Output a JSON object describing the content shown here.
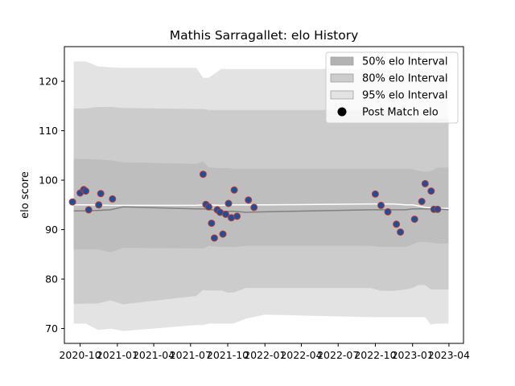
{
  "chart_data": {
    "type": "area",
    "title": "Mathis Sarragallet: elo History",
    "xlabel": "",
    "ylabel": "elo score",
    "grid": false,
    "legend_position": "upper-right",
    "xlim": [
      "2020-08-23",
      "2023-05-07"
    ],
    "ylim": [
      67,
      127
    ],
    "x_ticks": [
      "2020-10",
      "2021-01",
      "2021-04",
      "2021-07",
      "2021-10",
      "2022-01",
      "2022-04",
      "2022-07",
      "2022-10",
      "2023-01",
      "2023-04"
    ],
    "y_ticks": [
      70,
      80,
      90,
      100,
      110,
      120
    ],
    "legend": [
      {
        "label": "50% elo Interval",
        "kind": "band",
        "color": "#b3b3b3"
      },
      {
        "label": "80% elo Interval",
        "kind": "band",
        "color": "#cccccc"
      },
      {
        "label": "95% elo Interval",
        "kind": "band",
        "color": "#e3e3e3"
      },
      {
        "label": "Post Match elo",
        "kind": "marker",
        "color": "#000000"
      }
    ],
    "colors": {
      "band_50": "#b3b3b3",
      "band_80": "#cccccc",
      "band_95": "#e3e3e3",
      "mean_line": "#808080",
      "median_line": "#ffffff",
      "point_fill": "#1f4e9c",
      "point_edge": "#c0392b"
    },
    "bands": {
      "dates": [
        "2020-09-15",
        "2020-10-15",
        "2020-11-15",
        "2020-12-15",
        "2021-01-15",
        "2021-07-15",
        "2021-08-01",
        "2021-08-15",
        "2021-09-15",
        "2021-10-01",
        "2021-10-15",
        "2021-11-15",
        "2022-01-01",
        "2022-09-20",
        "2022-10-15",
        "2022-11-15",
        "2022-12-15",
        "2023-01-01",
        "2023-01-15",
        "2023-02-01",
        "2023-02-15",
        "2023-03-01",
        "2023-03-31"
      ],
      "p95_upper": [
        124,
        124,
        123,
        122.8,
        122.7,
        122.7,
        120.7,
        120.7,
        122.5,
        122.5,
        122.5,
        122.5,
        122.5,
        122.5,
        122.5,
        122.5,
        122.5,
        122.5,
        122.5,
        122.5,
        122.5,
        122.5,
        122.5
      ],
      "p80_upper": [
        114.5,
        114.5,
        114.8,
        114.8,
        114.6,
        114.4,
        114.4,
        114.2,
        114.2,
        114.2,
        114.2,
        114.2,
        114.2,
        114.2,
        114.2,
        114.2,
        113.8,
        113.0,
        112.4,
        112.3,
        112.3,
        112.5,
        112.4
      ],
      "p50_upper": [
        104.3,
        104.3,
        104.2,
        104.0,
        103.6,
        103.3,
        103.8,
        102.6,
        102.4,
        102.5,
        102.3,
        102.3,
        102.3,
        102.3,
        102.3,
        102.3,
        102.3,
        102.3,
        101.9,
        101.7,
        101.8,
        102.5,
        102.6
      ],
      "mean": [
        93.8,
        93.8,
        93.9,
        94.0,
        94.6,
        94.2,
        94.2,
        94.1,
        93.7,
        93.7,
        93.7,
        93.5,
        93.6,
        94.0,
        94.0,
        94.0,
        94.0,
        94.2,
        94.2,
        94.2,
        94.2,
        94.2,
        94.0
      ],
      "median": [
        95.0,
        95.0,
        95.0,
        94.9,
        94.9,
        94.9,
        95.0,
        95.0,
        94.9,
        95.0,
        95.0,
        95.0,
        95.0,
        95.2,
        95.2,
        95.2,
        95.0,
        95.0,
        94.8,
        94.5,
        94.4,
        94.3,
        94.3
      ],
      "p50_lower": [
        86.0,
        86.0,
        86.0,
        85.4,
        86.3,
        86.2,
        86.2,
        86.7,
        86.5,
        86.5,
        86.5,
        86.7,
        86.7,
        86.7,
        86.5,
        86.5,
        86.5,
        87.0,
        87.5,
        87.5,
        87.4,
        87.2,
        87.2
      ],
      "p80_lower": [
        75.0,
        75.0,
        75.1,
        75.7,
        74.9,
        76.6,
        77.8,
        77.7,
        77.7,
        77.3,
        77.3,
        78.2,
        78.2,
        78.2,
        77.6,
        77.6,
        77.9,
        78.2,
        78.8,
        78.8,
        77.9,
        77.9,
        77.9
      ],
      "p95_lower": [
        71.0,
        71.0,
        69.7,
        70.0,
        69.5,
        70.7,
        70.7,
        71.0,
        71.0,
        71.0,
        71.0,
        72.0,
        72.8,
        72.3,
        72.3,
        72.3,
        72.3,
        72.3,
        72.3,
        72.3,
        70.8,
        71.0,
        71.0
      ]
    },
    "series": [
      {
        "name": "Post Match elo",
        "x": [
          "2020-09-12",
          "2020-10-01",
          "2020-10-10",
          "2020-10-15",
          "2020-10-22",
          "2020-11-16",
          "2020-11-21",
          "2020-12-20",
          "2021-08-01",
          "2021-08-08",
          "2021-08-15",
          "2021-08-22",
          "2021-08-29",
          "2021-09-05",
          "2021-09-12",
          "2021-09-19",
          "2021-09-26",
          "2021-10-03",
          "2021-10-10",
          "2021-10-17",
          "2021-10-24",
          "2021-11-21",
          "2021-12-05",
          "2022-10-01",
          "2022-10-15",
          "2022-11-01",
          "2022-11-22",
          "2022-12-02",
          "2023-01-06",
          "2023-01-24",
          "2023-02-01",
          "2023-02-16",
          "2023-02-23",
          "2023-03-04"
        ],
        "values": [
          95.6,
          97.4,
          98.1,
          97.8,
          94.0,
          95.0,
          97.3,
          96.2,
          101.2,
          95.1,
          94.6,
          91.3,
          88.3,
          94.0,
          93.5,
          89.1,
          93.1,
          95.3,
          92.4,
          98.0,
          92.7,
          96.0,
          94.5,
          97.2,
          94.9,
          93.6,
          91.1,
          89.5,
          92.1,
          95.7,
          99.3,
          97.8,
          94.1,
          94.1
        ]
      }
    ]
  }
}
